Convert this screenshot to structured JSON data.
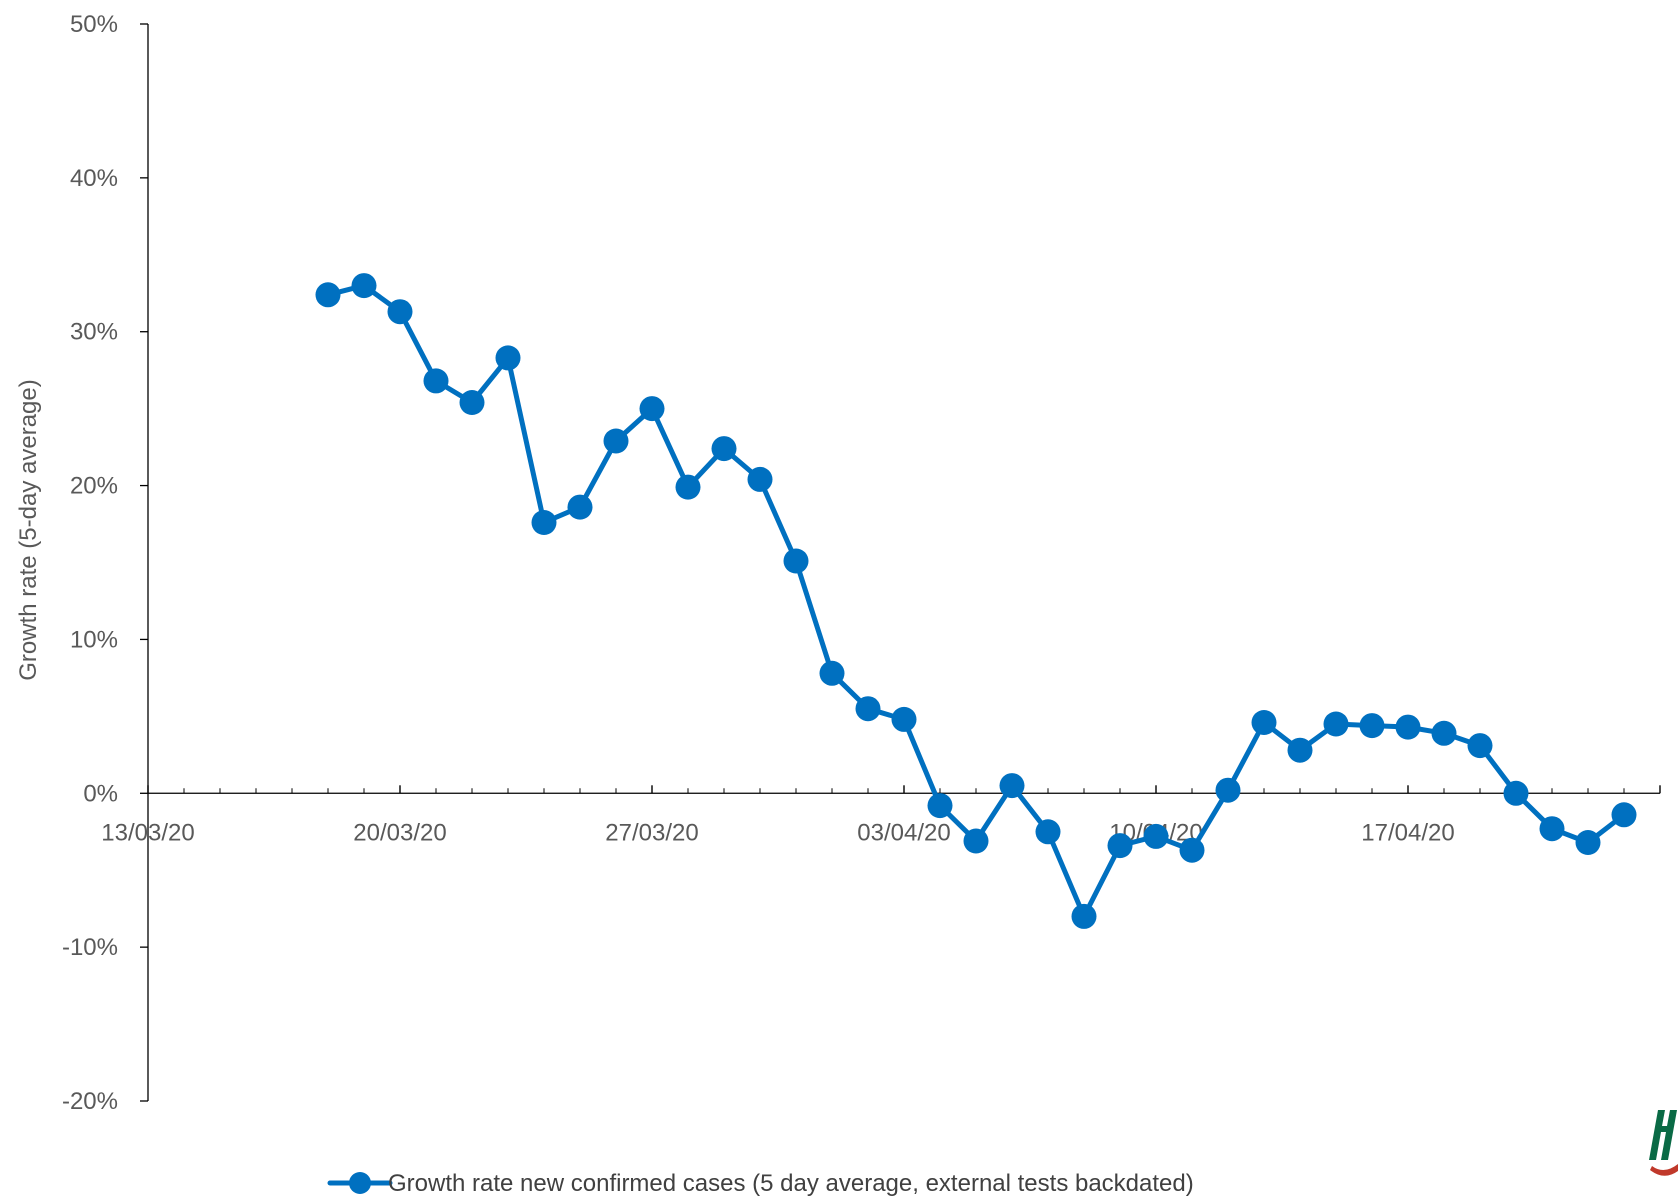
{
  "chart_data": {
    "type": "line",
    "title": "",
    "xlabel": "",
    "ylabel": "Growth rate (5-day average)",
    "x_tick_labels": [
      "13/03/20",
      "20/03/20",
      "27/03/20",
      "03/04/20",
      "10/04/20",
      "17/04/20"
    ],
    "y_tick_labels": [
      "-20%",
      "-10%",
      "0%",
      "10%",
      "20%",
      "30%",
      "40%",
      "50%"
    ],
    "ylim": [
      -20,
      50
    ],
    "xlim": [
      "13/03/20",
      "24/04/20"
    ],
    "grid": false,
    "legend_position": "bottom",
    "series": [
      {
        "name": "Growth rate new confirmed cases (5 day average, external tests backdated)",
        "color": "#0070C0",
        "x": [
          "18/03/20",
          "19/03/20",
          "20/03/20",
          "21/03/20",
          "22/03/20",
          "23/03/20",
          "24/03/20",
          "25/03/20",
          "26/03/20",
          "27/03/20",
          "28/03/20",
          "29/03/20",
          "30/03/20",
          "31/03/20",
          "01/04/20",
          "02/04/20",
          "03/04/20",
          "04/04/20",
          "05/04/20",
          "06/04/20",
          "07/04/20",
          "08/04/20",
          "09/04/20",
          "10/04/20",
          "11/04/20",
          "12/04/20",
          "13/04/20",
          "14/04/20",
          "15/04/20",
          "16/04/20",
          "17/04/20",
          "18/04/20",
          "19/04/20",
          "20/04/20",
          "21/04/20",
          "22/04/20",
          "23/04/20"
        ],
        "values": [
          32.4,
          33.0,
          31.3,
          26.8,
          25.4,
          28.3,
          17.6,
          18.6,
          22.9,
          25.0,
          19.9,
          22.4,
          20.4,
          15.1,
          7.8,
          5.5,
          4.8,
          -0.8,
          -3.1,
          0.5,
          -2.5,
          -8.0,
          -3.4,
          -2.8,
          -3.7,
          0.2,
          4.6,
          2.8,
          4.5,
          4.4,
          4.3,
          3.9,
          3.1,
          0.0,
          -2.3,
          -3.2,
          -1.4
        ]
      }
    ]
  }
}
